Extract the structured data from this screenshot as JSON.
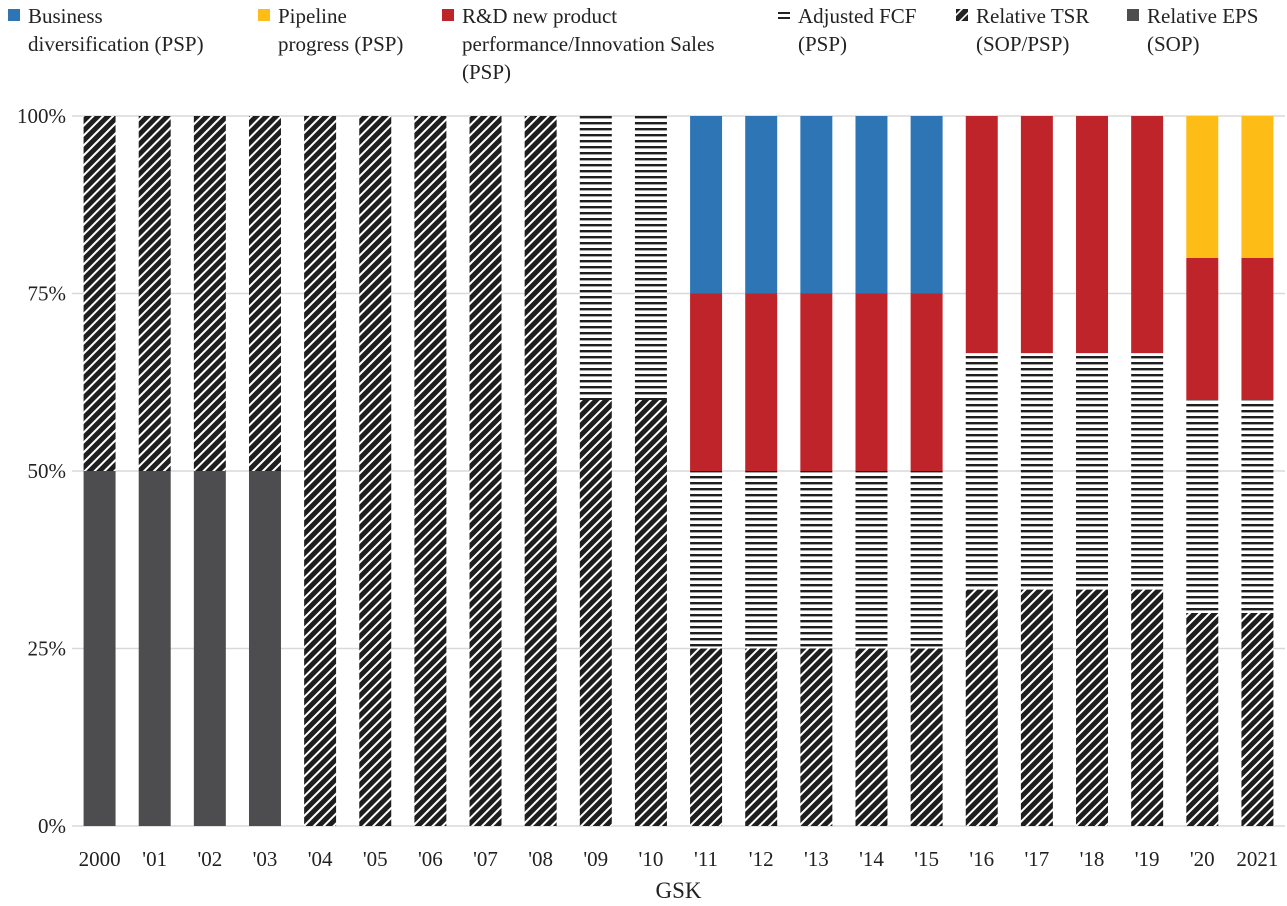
{
  "chart_data": {
    "type": "bar",
    "stacked": true,
    "xlabel": "GSK",
    "ylim": [
      0,
      100
    ],
    "yticks": [
      "0%",
      "25%",
      "50%",
      "75%",
      "100%"
    ],
    "categories": [
      "2000",
      "'01",
      "'02",
      "'03",
      "'04",
      "'05",
      "'06",
      "'07",
      "'08",
      "'09",
      "'10",
      "'11",
      "'12",
      "'13",
      "'14",
      "'15",
      "'16",
      "'17",
      "'18",
      "'19",
      "'20",
      "2021"
    ],
    "series": [
      {
        "name": "Relative EPS (SOP)",
        "color": "#4d4d4f",
        "pattern": "solid",
        "values": [
          50,
          50,
          50,
          50,
          0,
          0,
          0,
          0,
          0,
          0,
          0,
          0,
          0,
          0,
          0,
          0,
          0,
          0,
          0,
          0,
          0,
          0
        ]
      },
      {
        "name": "Relative TSR (SOP/PSP)",
        "color": "#222222",
        "pattern": "diagonal",
        "values": [
          50,
          50,
          50,
          50,
          100,
          100,
          100,
          100,
          100,
          60,
          60,
          25,
          25,
          25,
          25,
          25,
          33.3,
          33.3,
          33.3,
          33.3,
          30,
          30
        ]
      },
      {
        "name": "Adjusted FCF (PSP)",
        "color": "#222222",
        "pattern": "horizontal",
        "values": [
          0,
          0,
          0,
          0,
          0,
          0,
          0,
          0,
          0,
          40,
          40,
          25,
          25,
          25,
          25,
          25,
          33.3,
          33.3,
          33.3,
          33.3,
          30,
          30
        ]
      },
      {
        "name": "R&D new product performance/Innovation Sales (PSP)",
        "color": "#c0242b",
        "pattern": "solid",
        "values": [
          0,
          0,
          0,
          0,
          0,
          0,
          0,
          0,
          0,
          0,
          0,
          25,
          25,
          25,
          25,
          25,
          33.4,
          33.4,
          33.4,
          33.4,
          20,
          20
        ]
      },
      {
        "name": "Business diversification (PSP)",
        "color": "#2e75b6",
        "pattern": "solid",
        "values": [
          0,
          0,
          0,
          0,
          0,
          0,
          0,
          0,
          0,
          0,
          0,
          25,
          25,
          25,
          25,
          25,
          0,
          0,
          0,
          0,
          0,
          0
        ]
      },
      {
        "name": "Pipeline progress (PSP)",
        "color": "#fdbd16",
        "pattern": "solid",
        "values": [
          0,
          0,
          0,
          0,
          0,
          0,
          0,
          0,
          0,
          0,
          0,
          0,
          0,
          0,
          0,
          0,
          0,
          0,
          0,
          0,
          20,
          20
        ]
      }
    ],
    "legend": [
      {
        "label": "Business\ndiversification (PSP)",
        "color": "#2e75b6",
        "pattern": "solid"
      },
      {
        "label": "Pipeline\nprogress (PSP)",
        "color": "#fdbd16",
        "pattern": "solid"
      },
      {
        "label": "R&D new product\nperformance/Innovation Sales\n(PSP)",
        "color": "#c0242b",
        "pattern": "solid"
      },
      {
        "label": "Adjusted FCF\n(PSP)",
        "color": "#222222",
        "pattern": "horizontal"
      },
      {
        "label": "Relative TSR\n(SOP/PSP)",
        "color": "#222222",
        "pattern": "diagonal"
      },
      {
        "label": "Relative EPS\n(SOP)",
        "color": "#4d4d4f",
        "pattern": "solid"
      }
    ],
    "legend_position": "top",
    "grid": true
  }
}
